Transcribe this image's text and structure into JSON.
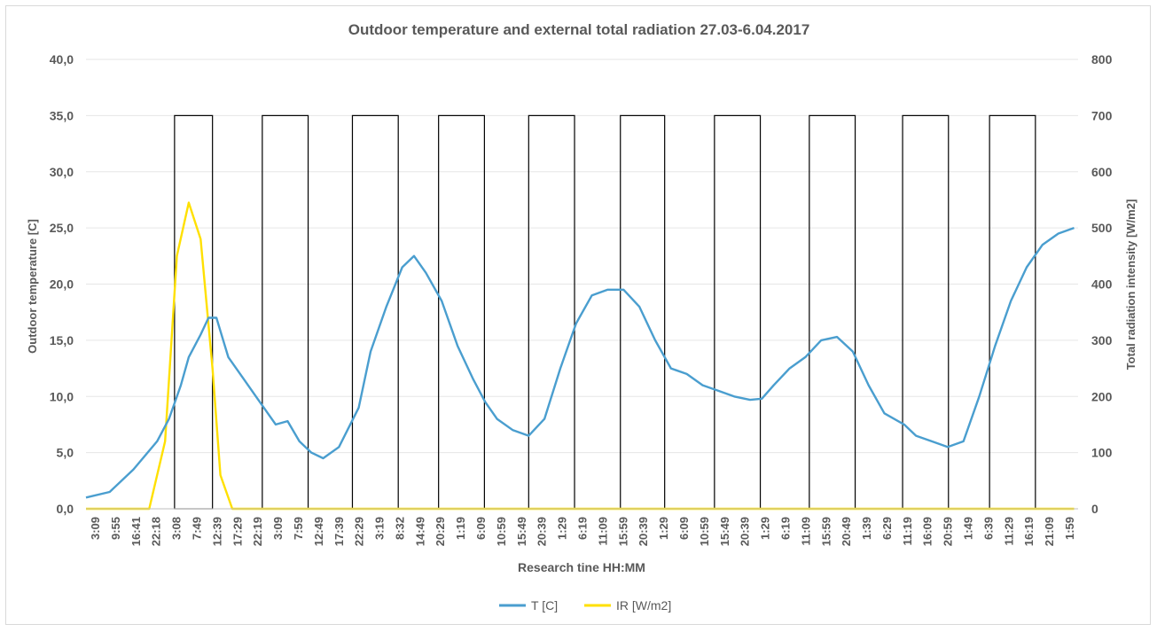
{
  "chart_data": {
    "type": "line",
    "title": "Outdoor temperature and external total radiation 27.03-6.04.2017",
    "xlabel": "Research tine HH:MM",
    "ylabel_left": "Outdoor temperature [C]",
    "ylabel_right": "Total radiation intensity [W/m2]",
    "y_left_range": [
      0,
      40
    ],
    "y_right_range": [
      0,
      800
    ],
    "y_left_ticks": [
      "0,0",
      "5,0",
      "10,0",
      "15,0",
      "20,0",
      "25,0",
      "30,0",
      "35,0",
      "40,0"
    ],
    "y_right_ticks": [
      "0",
      "100",
      "200",
      "300",
      "400",
      "500",
      "600",
      "700",
      "800"
    ],
    "x_tick_labels": [
      "3:09",
      "9:55",
      "16:41",
      "22:18",
      "3:08",
      "7:49",
      "12:39",
      "17:29",
      "22:19",
      "3:09",
      "7:59",
      "12:49",
      "17:39",
      "22:29",
      "3:19",
      "8:32",
      "14:49",
      "20:29",
      "1:19",
      "6:09",
      "10:59",
      "15:49",
      "20:39",
      "1:29",
      "6:19",
      "11:09",
      "15:59",
      "20:39",
      "1:29",
      "6:09",
      "10:59",
      "15:49",
      "20:39",
      "1:29",
      "6:19",
      "11:09",
      "15:59",
      "20:49",
      "1:39",
      "6:29",
      "11:19",
      "16:09",
      "20:59",
      "1:49",
      "6:39",
      "11:29",
      "16:19",
      "21:09",
      "1:59"
    ],
    "daylight_box_top": 35,
    "daylight_boxes": [
      [
        1.12,
        1.6
      ],
      [
        2.23,
        2.81
      ],
      [
        3.37,
        3.95
      ],
      [
        4.46,
        5.04
      ],
      [
        5.6,
        6.18
      ],
      [
        6.76,
        7.32
      ],
      [
        7.95,
        8.53
      ],
      [
        9.15,
        9.73
      ],
      [
        10.33,
        10.91
      ],
      [
        11.43,
        12.01
      ]
    ],
    "x_max": 12.55,
    "grid": true,
    "legend_position": "bottom",
    "series": [
      {
        "name": "T [C]",
        "axis": "left",
        "color": "#4a9ecf",
        "x": [
          0.0,
          0.3,
          0.6,
          0.9,
          1.05,
          1.2,
          1.3,
          1.45,
          1.55,
          1.65,
          1.8,
          2.0,
          2.15,
          2.3,
          2.4,
          2.55,
          2.7,
          2.85,
          3.0,
          3.2,
          3.45,
          3.6,
          3.8,
          4.0,
          4.15,
          4.3,
          4.5,
          4.7,
          4.9,
          5.05,
          5.2,
          5.4,
          5.6,
          5.8,
          6.0,
          6.2,
          6.4,
          6.6,
          6.8,
          7.0,
          7.2,
          7.4,
          7.6,
          7.8,
          8.0,
          8.2,
          8.4,
          8.55,
          8.7,
          8.9,
          9.1,
          9.3,
          9.5,
          9.7,
          9.9,
          10.1,
          10.35,
          10.5,
          10.7,
          10.9,
          11.1,
          11.3,
          11.5,
          11.7,
          11.9,
          12.1,
          12.3,
          12.5
        ],
        "y": [
          1.0,
          1.5,
          3.5,
          6.0,
          8.0,
          11.0,
          13.5,
          15.5,
          17.0,
          17.0,
          13.5,
          11.5,
          10.0,
          8.5,
          7.5,
          7.8,
          6.0,
          5.0,
          4.5,
          5.5,
          9.0,
          14.0,
          18.0,
          21.5,
          22.5,
          21.0,
          18.5,
          14.5,
          11.5,
          9.5,
          8.0,
          7.0,
          6.5,
          8.0,
          12.5,
          16.5,
          19.0,
          19.5,
          19.5,
          18.0,
          15.0,
          12.5,
          12.0,
          11.0,
          10.5,
          10.0,
          9.7,
          9.8,
          11.0,
          12.5,
          13.5,
          15.0,
          15.3,
          14.0,
          11.0,
          8.5,
          7.5,
          6.5,
          6.0,
          5.5,
          6.0,
          10.0,
          14.5,
          18.5,
          21.5,
          23.5,
          24.5,
          25.0
        ]
      },
      {
        "name": "IR [W/m2]",
        "axis": "right",
        "color": "#ffe000",
        "x": [
          0.0,
          0.5,
          0.8,
          1.0,
          1.15,
          1.3,
          1.45,
          1.6,
          1.7,
          1.85,
          2.1,
          2.3,
          2.5,
          2.7,
          2.9,
          3.1,
          3.3,
          3.5,
          3.7,
          3.9,
          4.1,
          4.3,
          4.5,
          4.7,
          4.9,
          5.1,
          5.3,
          5.5,
          5.7,
          5.9,
          6.1,
          6.3,
          6.5,
          6.7,
          6.9,
          7.1,
          7.3,
          7.5,
          7.7,
          7.9,
          8.1,
          8.3,
          8.5,
          8.7,
          8.9,
          9.1,
          9.3,
          9.5,
          9.7,
          9.9,
          10.1,
          10.3,
          10.5,
          10.7,
          10.9,
          11.1,
          11.3,
          11.5,
          11.7,
          11.9,
          12.1,
          12.3,
          12.5
        ],
        "y": [
          0,
          0,
          0,
          120,
          450,
          545,
          480,
          250,
          60,
          0,
          0,
          0,
          0,
          0,
          0,
          0,
          0,
          0,
          0,
          0,
          0,
          0,
          0,
          0,
          0,
          0,
          0,
          0,
          0,
          0,
          0,
          0,
          0,
          0,
          0,
          0,
          0,
          0,
          0,
          0,
          0,
          0,
          0,
          0,
          0,
          0,
          0,
          0,
          0,
          0,
          0,
          0,
          0,
          0,
          0,
          0,
          0,
          0,
          0,
          0,
          0,
          0,
          0
        ]
      }
    ]
  },
  "legend": {
    "t_label": "T [C]",
    "ir_label": "IR [W/m2]"
  }
}
